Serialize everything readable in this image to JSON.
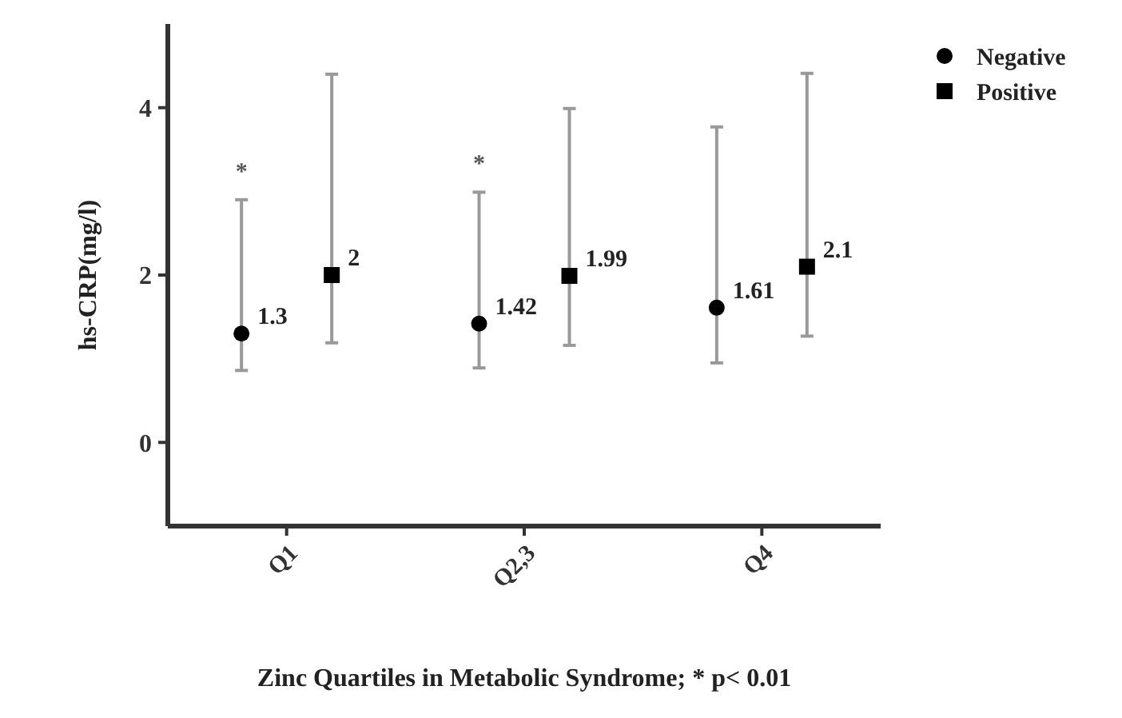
{
  "chart_data": {
    "type": "scatter",
    "xlabel": "Zinc Quartiles in Metabolic Syndrome; * p< 0.01",
    "ylabel": "hs-CRP(mg/l)",
    "categories": [
      "Q1",
      "Q2,3",
      "Q4"
    ],
    "ylim": [
      -1,
      5
    ],
    "yticks": [
      0,
      2,
      4
    ],
    "legend": "top right",
    "data_labels": true,
    "grid": false,
    "series": [
      {
        "name": "Negative",
        "color": "#000000",
        "marker": "circle",
        "values": [
          1.3,
          1.42,
          1.61
        ],
        "errors": [
          [
            0.86,
            2.9
          ],
          [
            0.89,
            2.99
          ],
          [
            0.95,
            3.77
          ]
        ]
      },
      {
        "name": "Positive",
        "color": "#000000",
        "marker": "square",
        "values": [
          2,
          1.99,
          2.1
        ],
        "errors": [
          [
            1.19,
            4.4
          ],
          [
            1.16,
            3.99
          ],
          [
            1.27,
            4.41
          ]
        ]
      }
    ],
    "annotations": [
      "*",
      "*"
    ]
  }
}
